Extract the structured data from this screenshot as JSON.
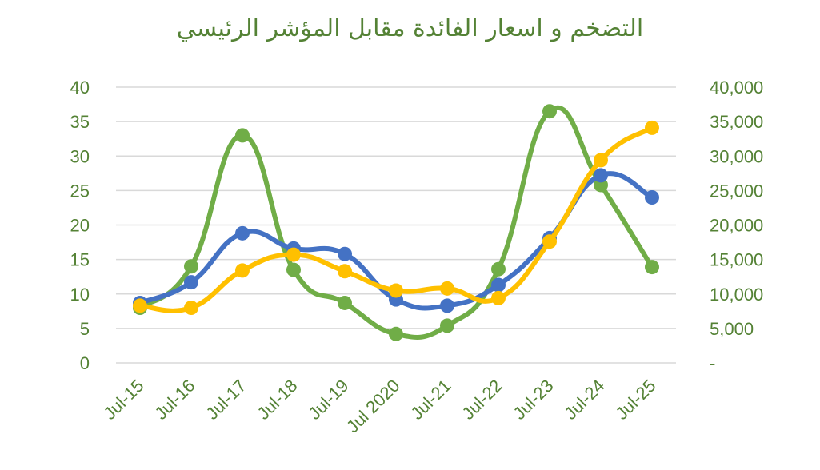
{
  "chart_data": {
    "type": "line",
    "title": "التضخم و اسعار الفائدة مقابل المؤشر الرئيسي",
    "categories": [
      "Jul-15",
      "Jul-16",
      "Jul-17",
      "Jul-18",
      "Jul-19",
      "Jul 2020",
      "Jul-21",
      "Jul-22",
      "Jul-23",
      "Jul-24",
      "Jul-25"
    ],
    "left_axis": {
      "ylim": [
        0,
        40
      ],
      "ticks": [
        "0",
        "5",
        "10",
        "15",
        "20",
        "25",
        "30",
        "35",
        "40"
      ]
    },
    "right_axis": {
      "ylim": [
        0,
        40000
      ],
      "ticks": [
        "-",
        "5,000",
        "10,000",
        "15,000",
        "20,000",
        "25,000",
        "30,000",
        "35,000",
        "40,000"
      ]
    },
    "grid": true,
    "legend": "none",
    "series": [
      {
        "axis": "left",
        "color": "#70AD47",
        "values": [
          8,
          14,
          33,
          13.5,
          8.7,
          4.2,
          5.4,
          13.6,
          36.5,
          25.8,
          13.9
        ]
      },
      {
        "axis": "left",
        "color": "#4472C4",
        "values": [
          8.7,
          11.7,
          18.8,
          16.6,
          15.8,
          9.2,
          8.3,
          11.3,
          18.1,
          27.2,
          24
        ]
      },
      {
        "axis": "right",
        "color": "#FFC000",
        "values": [
          8300,
          8000,
          13400,
          15700,
          13300,
          10500,
          10800,
          9400,
          17600,
          29400,
          34100
        ]
      }
    ]
  }
}
